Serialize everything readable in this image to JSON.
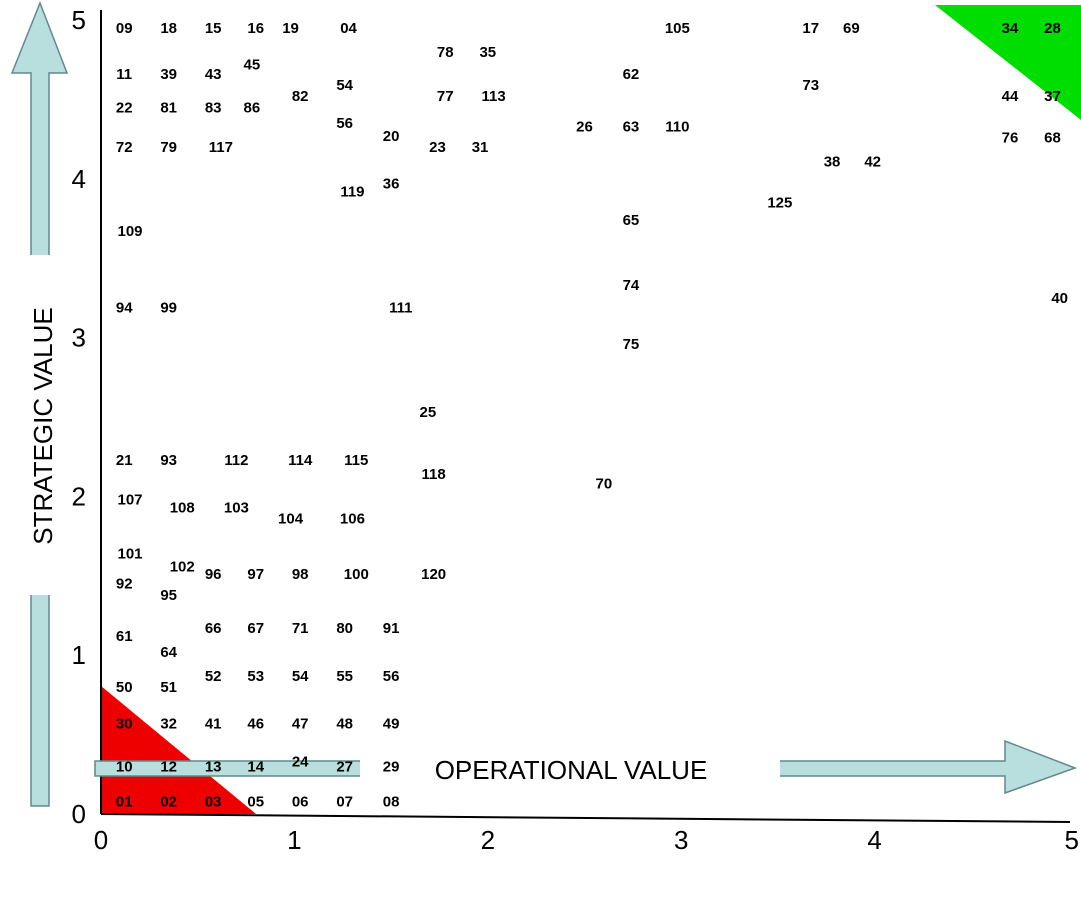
{
  "chart_data": {
    "type": "scatter",
    "title": "",
    "xlabel": "OPERATIONAL VALUE",
    "ylabel": "STRATEGIC VALUE",
    "xlim": [
      0,
      5
    ],
    "ylim": [
      0,
      5
    ],
    "x_ticks": [
      "0",
      "1",
      "2",
      "3",
      "4",
      "5"
    ],
    "y_ticks": [
      "0",
      "1",
      "2",
      "3",
      "4",
      "5"
    ],
    "grid": false,
    "colors": {
      "low_zone": "#ee0000",
      "high_zone": "#00dd00",
      "arrow_fill": "#b9dede",
      "arrow_stroke": "#5f8a8a"
    },
    "points": [
      {
        "label": "09",
        "x": 0.12,
        "y": 4.95
      },
      {
        "label": "18",
        "x": 0.35,
        "y": 4.95
      },
      {
        "label": "15",
        "x": 0.58,
        "y": 4.95
      },
      {
        "label": "16",
        "x": 0.8,
        "y": 4.95
      },
      {
        "label": "19",
        "x": 0.98,
        "y": 4.95
      },
      {
        "label": "04",
        "x": 1.28,
        "y": 4.95
      },
      {
        "label": "105",
        "x": 2.98,
        "y": 4.95
      },
      {
        "label": "17",
        "x": 3.67,
        "y": 4.95
      },
      {
        "label": "69",
        "x": 3.88,
        "y": 4.95
      },
      {
        "label": "34",
        "x": 4.7,
        "y": 4.95
      },
      {
        "label": "28",
        "x": 4.92,
        "y": 4.95
      },
      {
        "label": "78",
        "x": 1.78,
        "y": 4.8
      },
      {
        "label": "35",
        "x": 2.0,
        "y": 4.8
      },
      {
        "label": "45",
        "x": 0.78,
        "y": 4.72
      },
      {
        "label": "11",
        "x": 0.12,
        "y": 4.66
      },
      {
        "label": "39",
        "x": 0.35,
        "y": 4.66
      },
      {
        "label": "43",
        "x": 0.58,
        "y": 4.66
      },
      {
        "label": "62",
        "x": 2.74,
        "y": 4.66
      },
      {
        "label": "54",
        "x": 1.26,
        "y": 4.59
      },
      {
        "label": "73",
        "x": 3.67,
        "y": 4.59
      },
      {
        "label": "82",
        "x": 1.03,
        "y": 4.52
      },
      {
        "label": "77",
        "x": 1.78,
        "y": 4.52
      },
      {
        "label": "113",
        "x": 2.03,
        "y": 4.52
      },
      {
        "label": "44",
        "x": 4.7,
        "y": 4.52
      },
      {
        "label": "37",
        "x": 4.92,
        "y": 4.52
      },
      {
        "label": "22",
        "x": 0.12,
        "y": 4.45
      },
      {
        "label": "81",
        "x": 0.35,
        "y": 4.45
      },
      {
        "label": "83",
        "x": 0.58,
        "y": 4.45
      },
      {
        "label": "86",
        "x": 0.78,
        "y": 4.45
      },
      {
        "label": "56",
        "x": 1.26,
        "y": 4.35
      },
      {
        "label": "26",
        "x": 2.5,
        "y": 4.33
      },
      {
        "label": "63",
        "x": 2.74,
        "y": 4.33
      },
      {
        "label": "110",
        "x": 2.98,
        "y": 4.33
      },
      {
        "label": "20",
        "x": 1.5,
        "y": 4.27
      },
      {
        "label": "76",
        "x": 4.7,
        "y": 4.26
      },
      {
        "label": "68",
        "x": 4.92,
        "y": 4.26
      },
      {
        "label": "72",
        "x": 0.12,
        "y": 4.2
      },
      {
        "label": "79",
        "x": 0.35,
        "y": 4.2
      },
      {
        "label": "117",
        "x": 0.62,
        "y": 4.2
      },
      {
        "label": "23",
        "x": 1.74,
        "y": 4.2
      },
      {
        "label": "31",
        "x": 1.96,
        "y": 4.2
      },
      {
        "label": "38",
        "x": 3.78,
        "y": 4.11
      },
      {
        "label": "42",
        "x": 3.99,
        "y": 4.11
      },
      {
        "label": "36",
        "x": 1.5,
        "y": 3.97
      },
      {
        "label": "119",
        "x": 1.3,
        "y": 3.92
      },
      {
        "label": "125",
        "x": 3.51,
        "y": 3.85
      },
      {
        "label": "65",
        "x": 2.74,
        "y": 3.74
      },
      {
        "label": "109",
        "x": 0.15,
        "y": 3.67
      },
      {
        "label": "74",
        "x": 2.74,
        "y": 3.33
      },
      {
        "label": "40",
        "x": 5.0,
        "y": 3.25
      },
      {
        "label": "94",
        "x": 0.12,
        "y": 3.19
      },
      {
        "label": "99",
        "x": 0.35,
        "y": 3.19
      },
      {
        "label": "111",
        "x": 1.55,
        "y": 3.19
      },
      {
        "label": "75",
        "x": 2.74,
        "y": 2.96
      },
      {
        "label": "25",
        "x": 1.69,
        "y": 2.53
      },
      {
        "label": "21",
        "x": 0.12,
        "y": 2.23
      },
      {
        "label": "93",
        "x": 0.35,
        "y": 2.23
      },
      {
        "label": "112",
        "x": 0.7,
        "y": 2.23
      },
      {
        "label": "114",
        "x": 1.03,
        "y": 2.23
      },
      {
        "label": "115",
        "x": 1.32,
        "y": 2.23
      },
      {
        "label": "118",
        "x": 1.72,
        "y": 2.14
      },
      {
        "label": "70",
        "x": 2.6,
        "y": 2.08
      },
      {
        "label": "107",
        "x": 0.15,
        "y": 1.98
      },
      {
        "label": "108",
        "x": 0.42,
        "y": 1.93
      },
      {
        "label": "103",
        "x": 0.7,
        "y": 1.93
      },
      {
        "label": "104",
        "x": 0.98,
        "y": 1.86
      },
      {
        "label": "106",
        "x": 1.3,
        "y": 1.86
      },
      {
        "label": "101",
        "x": 0.15,
        "y": 1.64
      },
      {
        "label": "102",
        "x": 0.42,
        "y": 1.56
      },
      {
        "label": "96",
        "x": 0.58,
        "y": 1.51
      },
      {
        "label": "97",
        "x": 0.8,
        "y": 1.51
      },
      {
        "label": "98",
        "x": 1.03,
        "y": 1.51
      },
      {
        "label": "100",
        "x": 1.32,
        "y": 1.51
      },
      {
        "label": "120",
        "x": 1.72,
        "y": 1.51
      },
      {
        "label": "92",
        "x": 0.12,
        "y": 1.45
      },
      {
        "label": "95",
        "x": 0.35,
        "y": 1.38
      },
      {
        "label": "66",
        "x": 0.58,
        "y": 1.17
      },
      {
        "label": "67",
        "x": 0.8,
        "y": 1.17
      },
      {
        "label": "71",
        "x": 1.03,
        "y": 1.17
      },
      {
        "label": "80",
        "x": 1.26,
        "y": 1.17
      },
      {
        "label": "91",
        "x": 1.5,
        "y": 1.17
      },
      {
        "label": "61",
        "x": 0.12,
        "y": 1.12
      },
      {
        "label": "64",
        "x": 0.35,
        "y": 1.02
      },
      {
        "label": "52",
        "x": 0.58,
        "y": 0.87
      },
      {
        "label": "53",
        "x": 0.8,
        "y": 0.87
      },
      {
        "label": "54",
        "x": 1.03,
        "y": 0.87
      },
      {
        "label": "55",
        "x": 1.26,
        "y": 0.87
      },
      {
        "label": "56",
        "x": 1.5,
        "y": 0.87
      },
      {
        "label": "50",
        "x": 0.12,
        "y": 0.8
      },
      {
        "label": "51",
        "x": 0.35,
        "y": 0.8
      },
      {
        "label": "30",
        "x": 0.12,
        "y": 0.57
      },
      {
        "label": "32",
        "x": 0.35,
        "y": 0.57
      },
      {
        "label": "41",
        "x": 0.58,
        "y": 0.57
      },
      {
        "label": "46",
        "x": 0.8,
        "y": 0.57
      },
      {
        "label": "47",
        "x": 1.03,
        "y": 0.57
      },
      {
        "label": "48",
        "x": 1.26,
        "y": 0.57
      },
      {
        "label": "49",
        "x": 1.5,
        "y": 0.57
      },
      {
        "label": "24",
        "x": 1.03,
        "y": 0.33
      },
      {
        "label": "10",
        "x": 0.12,
        "y": 0.3
      },
      {
        "label": "12",
        "x": 0.35,
        "y": 0.3
      },
      {
        "label": "13",
        "x": 0.58,
        "y": 0.3
      },
      {
        "label": "14",
        "x": 0.8,
        "y": 0.3
      },
      {
        "label": "27",
        "x": 1.26,
        "y": 0.3
      },
      {
        "label": "29",
        "x": 1.5,
        "y": 0.3
      },
      {
        "label": "01",
        "x": 0.12,
        "y": 0.08
      },
      {
        "label": "02",
        "x": 0.35,
        "y": 0.08
      },
      {
        "label": "03",
        "x": 0.58,
        "y": 0.08
      },
      {
        "label": "05",
        "x": 0.8,
        "y": 0.08
      },
      {
        "label": "06",
        "x": 1.03,
        "y": 0.08
      },
      {
        "label": "07",
        "x": 1.26,
        "y": 0.08
      },
      {
        "label": "08",
        "x": 1.5,
        "y": 0.08
      }
    ]
  }
}
